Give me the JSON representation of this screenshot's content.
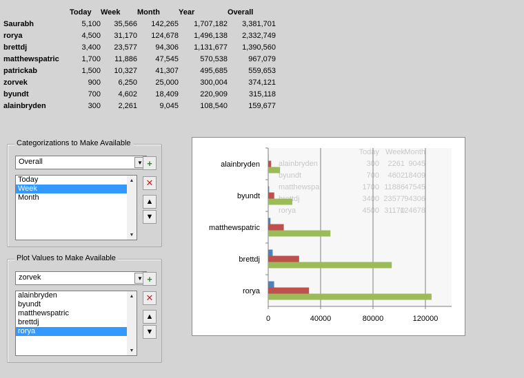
{
  "table": {
    "headers": [
      "",
      "Today",
      "Week",
      "Month",
      "Year",
      "Overall"
    ],
    "rows": [
      {
        "name": "Saurabh",
        "today": "5,100",
        "week": "35,566",
        "month": "142,265",
        "year": "1,707,182",
        "overall": "3,381,701"
      },
      {
        "name": "rorya",
        "today": "4,500",
        "week": "31,170",
        "month": "124,678",
        "year": "1,496,138",
        "overall": "2,332,749"
      },
      {
        "name": "brettdj",
        "today": "3,400",
        "week": "23,577",
        "month": "94,306",
        "year": "1,131,677",
        "overall": "1,390,560"
      },
      {
        "name": "matthewspatric",
        "today": "1,700",
        "week": "11,886",
        "month": "47,545",
        "year": "570,538",
        "overall": "967,079"
      },
      {
        "name": "patrickab",
        "today": "1,500",
        "week": "10,327",
        "month": "41,307",
        "year": "495,685",
        "overall": "559,653"
      },
      {
        "name": "zorvek",
        "today": "900",
        "week": "6,250",
        "month": "25,000",
        "year": "300,004",
        "overall": "374,121"
      },
      {
        "name": "byundt",
        "today": "700",
        "week": "4,602",
        "month": "18,409",
        "year": "220,909",
        "overall": "315,118"
      },
      {
        "name": "alainbryden",
        "today": "300",
        "week": "2,261",
        "month": "9,045",
        "year": "108,540",
        "overall": "159,677"
      }
    ]
  },
  "categorizations": {
    "title": "Categorizations to Make Available",
    "combo_value": "Overall",
    "items": [
      "Today",
      "Week",
      "Month"
    ],
    "selected_index": 1
  },
  "plot_values": {
    "title": "Plot Values to Make Available",
    "combo_value": "zorvek",
    "items": [
      "alainbryden",
      "byundt",
      "matthewspatric",
      "brettdj",
      "rorya"
    ],
    "selected_index": 4
  },
  "buttons": {
    "add_glyph": "+",
    "remove_glyph": "✕",
    "up_glyph": "▲",
    "down_glyph": "▼",
    "dropdown_glyph": "▼"
  },
  "colors": {
    "today": "#4f81bd",
    "week": "#c0504d",
    "month": "#9bbb59"
  },
  "chart_data": {
    "type": "bar",
    "orientation": "horizontal",
    "categories": [
      "rorya",
      "brettdj",
      "matthewspatric",
      "byundt",
      "alainbryden"
    ],
    "series": [
      {
        "name": "Today",
        "values": [
          4500,
          3400,
          1700,
          700,
          300
        ]
      },
      {
        "name": "Week",
        "values": [
          31170,
          23577,
          11886,
          4602,
          2261
        ]
      },
      {
        "name": "Month",
        "values": [
          124678,
          94306,
          47545,
          18409,
          9045
        ]
      }
    ],
    "x_ticks": [
      "0",
      "40000",
      "80000",
      "120000"
    ],
    "xlim": [
      0,
      140000
    ],
    "grid": true,
    "legend": "right",
    "background_table": {
      "headers": [
        "Today",
        "Week",
        "Month"
      ],
      "rows": [
        [
          "alainbryden",
          "300",
          "2261",
          "9045"
        ],
        [
          "byundt",
          "700",
          "4602",
          "18409"
        ],
        [
          "matthewspa",
          "1700",
          "11886",
          "47545"
        ],
        [
          "brettdj",
          "3400",
          "23577",
          "94306"
        ],
        [
          "rorya",
          "4500",
          "31170",
          "124678"
        ]
      ]
    }
  }
}
